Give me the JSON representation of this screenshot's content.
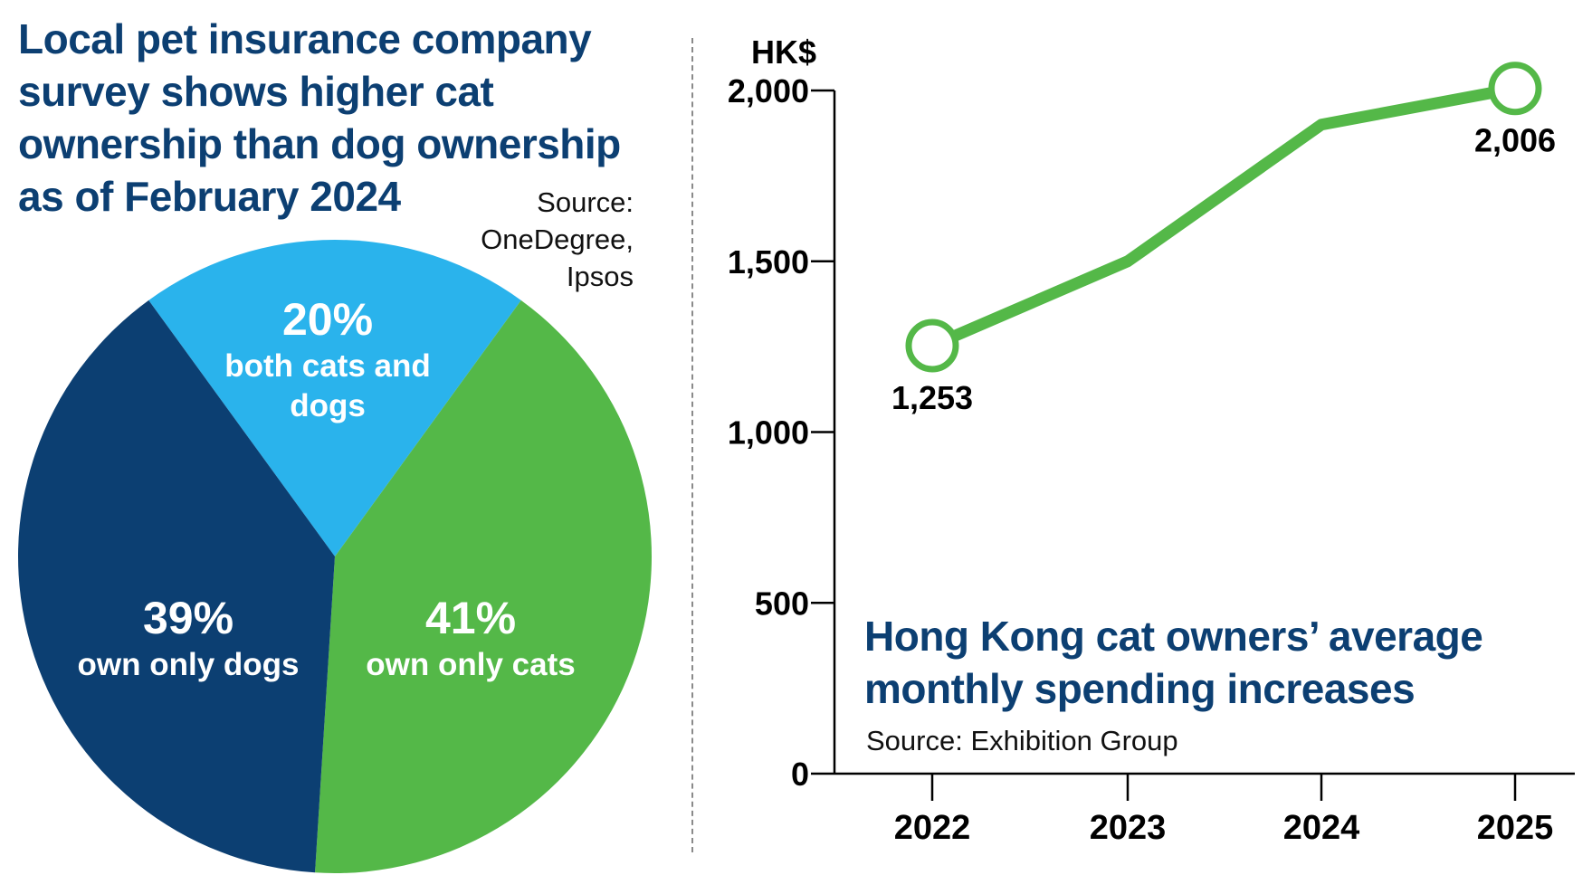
{
  "left_panel": {
    "title": "Local pet insurance company survey shows higher cat ownership than dog ownership as of February 2024",
    "source": "Source: OneDegree, Ipsos"
  },
  "right_panel": {
    "title": "Hong Kong cat owners’ average monthly spending increases",
    "source": "Source: Exhibition Group"
  },
  "colors": {
    "navy": "#0c3f72",
    "green": "#54b848",
    "light_blue": "#2ab3ec"
  },
  "chart_data": [
    {
      "type": "pie",
      "title": "Local pet insurance company survey shows higher cat ownership than dog ownership as of February 2024",
      "slices": [
        {
          "value": 20,
          "pct_label": "20%",
          "label": "both cats and dogs",
          "color": "#2ab3ec"
        },
        {
          "value": 41,
          "pct_label": "41%",
          "label": "own only cats",
          "color": "#54b848"
        },
        {
          "value": 39,
          "pct_label": "39%",
          "label": "own only dogs",
          "color": "#0c3f72"
        }
      ]
    },
    {
      "type": "line",
      "title": "Hong Kong cat owners’ average monthly spending increases",
      "ylabel": "HK$",
      "x": [
        "2022",
        "2023",
        "2024",
        "2025"
      ],
      "values": [
        1253,
        1500,
        1900,
        2006
      ],
      "data_labels": [
        {
          "index": 0,
          "text": "1,253"
        },
        {
          "index": 3,
          "text": "2,006"
        }
      ],
      "yticks": [
        0,
        500,
        1000,
        1500,
        2000
      ],
      "ytick_labels": [
        "0",
        "500",
        "1,000",
        "1,500",
        "2,000"
      ],
      "ylim": [
        0,
        2000
      ],
      "grid": false,
      "color": "#54b848"
    }
  ]
}
